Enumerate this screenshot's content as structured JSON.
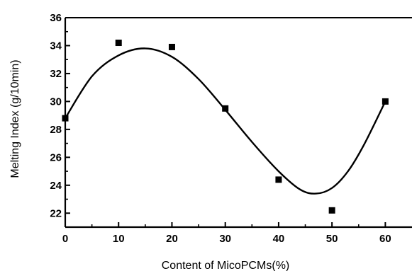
{
  "chart_data": {
    "type": "scatter",
    "title": "",
    "xlabel": "Content of MicoPCMs(%)",
    "ylabel": "Melting Index (g/10min)",
    "xlim": [
      0,
      65
    ],
    "ylim": [
      21,
      36
    ],
    "x_ticks": [
      0,
      10,
      20,
      30,
      40,
      50,
      60
    ],
    "y_ticks": [
      22,
      24,
      26,
      28,
      30,
      32,
      34,
      36
    ],
    "grid": false,
    "legend": "none",
    "series": [
      {
        "marker": "square",
        "color": "#000000",
        "points": [
          {
            "x": 0,
            "y": 28.8
          },
          {
            "x": 10,
            "y": 34.2
          },
          {
            "x": 20,
            "y": 33.9
          },
          {
            "x": 30,
            "y": 29.5
          },
          {
            "x": 40,
            "y": 24.4
          },
          {
            "x": 50,
            "y": 22.2
          },
          {
            "x": 60,
            "y": 30.0
          }
        ]
      }
    ],
    "fit_curve": {
      "type": "smooth",
      "color": "#000000",
      "points": [
        {
          "x": 0,
          "y": 28.8
        },
        {
          "x": 5,
          "y": 31.8
        },
        {
          "x": 10,
          "y": 33.3
        },
        {
          "x": 15,
          "y": 33.8
        },
        {
          "x": 20,
          "y": 33.2
        },
        {
          "x": 25,
          "y": 31.6
        },
        {
          "x": 30,
          "y": 29.4
        },
        {
          "x": 35,
          "y": 27.1
        },
        {
          "x": 40,
          "y": 25.0
        },
        {
          "x": 44,
          "y": 23.7
        },
        {
          "x": 47,
          "y": 23.4
        },
        {
          "x": 50,
          "y": 23.8
        },
        {
          "x": 53,
          "y": 25.0
        },
        {
          "x": 56,
          "y": 26.9
        },
        {
          "x": 60,
          "y": 30.0
        }
      ]
    }
  }
}
